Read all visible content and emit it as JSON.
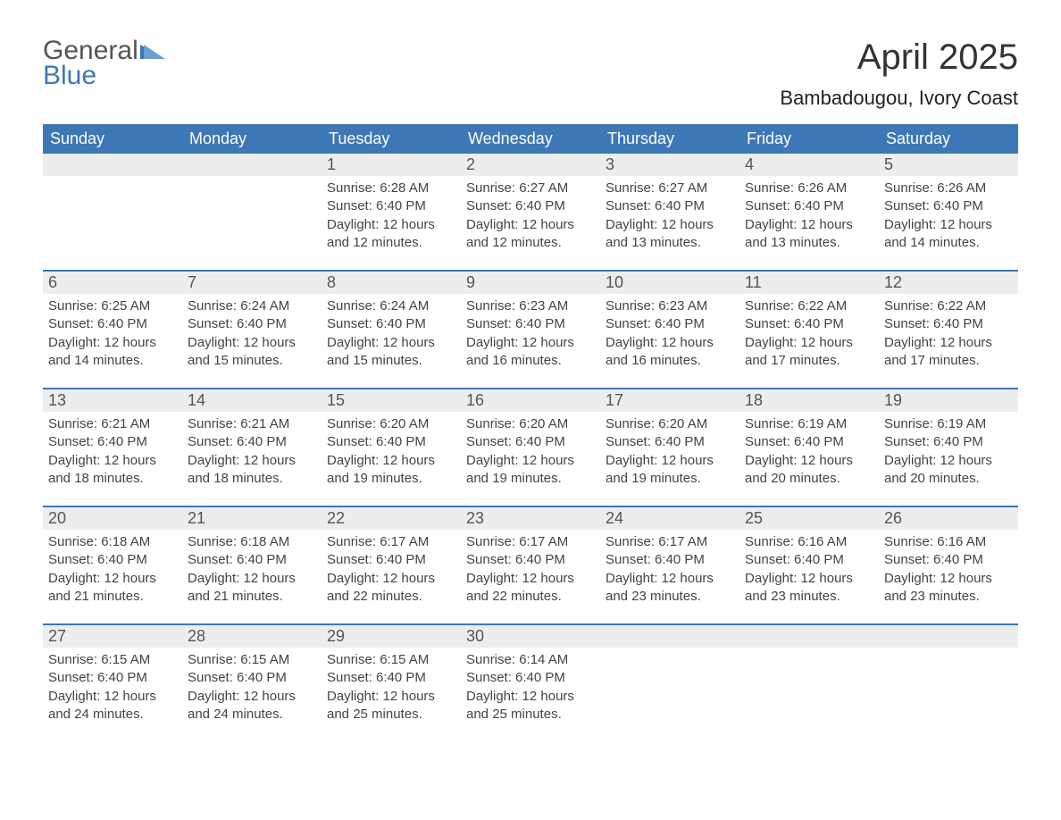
{
  "colors": {
    "brand_blue": "#3d77b6",
    "header_bg": "#3d77b6",
    "header_text": "#ffffff",
    "daynum_bg": "#eceded",
    "daynum_text": "#555555",
    "body_text": "#444444",
    "logo_gray": "#555555",
    "page_bg": "#ffffff"
  },
  "typography": {
    "month_title_fontsize": 40,
    "location_fontsize": 22,
    "weekday_fontsize": 18,
    "daynum_fontsize": 18,
    "daybody_fontsize": 15,
    "logo_fontsize": 30
  },
  "logo": {
    "word1": "General",
    "word2": "Blue"
  },
  "title": "April 2025",
  "location": "Bambadougou, Ivory Coast",
  "weekdays": [
    "Sunday",
    "Monday",
    "Tuesday",
    "Wednesday",
    "Thursday",
    "Friday",
    "Saturday"
  ],
  "labels": {
    "sunrise": "Sunrise:",
    "sunset": "Sunset:",
    "daylight": "Daylight:"
  },
  "layout": {
    "columns": 7,
    "rows": 5,
    "blank_leading_cells": 2
  },
  "weeks": [
    [
      null,
      null,
      {
        "n": "1",
        "sr": "6:28 AM",
        "ss": "6:40 PM",
        "dl": "12 hours and 12 minutes."
      },
      {
        "n": "2",
        "sr": "6:27 AM",
        "ss": "6:40 PM",
        "dl": "12 hours and 12 minutes."
      },
      {
        "n": "3",
        "sr": "6:27 AM",
        "ss": "6:40 PM",
        "dl": "12 hours and 13 minutes."
      },
      {
        "n": "4",
        "sr": "6:26 AM",
        "ss": "6:40 PM",
        "dl": "12 hours and 13 minutes."
      },
      {
        "n": "5",
        "sr": "6:26 AM",
        "ss": "6:40 PM",
        "dl": "12 hours and 14 minutes."
      }
    ],
    [
      {
        "n": "6",
        "sr": "6:25 AM",
        "ss": "6:40 PM",
        "dl": "12 hours and 14 minutes."
      },
      {
        "n": "7",
        "sr": "6:24 AM",
        "ss": "6:40 PM",
        "dl": "12 hours and 15 minutes."
      },
      {
        "n": "8",
        "sr": "6:24 AM",
        "ss": "6:40 PM",
        "dl": "12 hours and 15 minutes."
      },
      {
        "n": "9",
        "sr": "6:23 AM",
        "ss": "6:40 PM",
        "dl": "12 hours and 16 minutes."
      },
      {
        "n": "10",
        "sr": "6:23 AM",
        "ss": "6:40 PM",
        "dl": "12 hours and 16 minutes."
      },
      {
        "n": "11",
        "sr": "6:22 AM",
        "ss": "6:40 PM",
        "dl": "12 hours and 17 minutes."
      },
      {
        "n": "12",
        "sr": "6:22 AM",
        "ss": "6:40 PM",
        "dl": "12 hours and 17 minutes."
      }
    ],
    [
      {
        "n": "13",
        "sr": "6:21 AM",
        "ss": "6:40 PM",
        "dl": "12 hours and 18 minutes."
      },
      {
        "n": "14",
        "sr": "6:21 AM",
        "ss": "6:40 PM",
        "dl": "12 hours and 18 minutes."
      },
      {
        "n": "15",
        "sr": "6:20 AM",
        "ss": "6:40 PM",
        "dl": "12 hours and 19 minutes."
      },
      {
        "n": "16",
        "sr": "6:20 AM",
        "ss": "6:40 PM",
        "dl": "12 hours and 19 minutes."
      },
      {
        "n": "17",
        "sr": "6:20 AM",
        "ss": "6:40 PM",
        "dl": "12 hours and 19 minutes."
      },
      {
        "n": "18",
        "sr": "6:19 AM",
        "ss": "6:40 PM",
        "dl": "12 hours and 20 minutes."
      },
      {
        "n": "19",
        "sr": "6:19 AM",
        "ss": "6:40 PM",
        "dl": "12 hours and 20 minutes."
      }
    ],
    [
      {
        "n": "20",
        "sr": "6:18 AM",
        "ss": "6:40 PM",
        "dl": "12 hours and 21 minutes."
      },
      {
        "n": "21",
        "sr": "6:18 AM",
        "ss": "6:40 PM",
        "dl": "12 hours and 21 minutes."
      },
      {
        "n": "22",
        "sr": "6:17 AM",
        "ss": "6:40 PM",
        "dl": "12 hours and 22 minutes."
      },
      {
        "n": "23",
        "sr": "6:17 AM",
        "ss": "6:40 PM",
        "dl": "12 hours and 22 minutes."
      },
      {
        "n": "24",
        "sr": "6:17 AM",
        "ss": "6:40 PM",
        "dl": "12 hours and 23 minutes."
      },
      {
        "n": "25",
        "sr": "6:16 AM",
        "ss": "6:40 PM",
        "dl": "12 hours and 23 minutes."
      },
      {
        "n": "26",
        "sr": "6:16 AM",
        "ss": "6:40 PM",
        "dl": "12 hours and 23 minutes."
      }
    ],
    [
      {
        "n": "27",
        "sr": "6:15 AM",
        "ss": "6:40 PM",
        "dl": "12 hours and 24 minutes."
      },
      {
        "n": "28",
        "sr": "6:15 AM",
        "ss": "6:40 PM",
        "dl": "12 hours and 24 minutes."
      },
      {
        "n": "29",
        "sr": "6:15 AM",
        "ss": "6:40 PM",
        "dl": "12 hours and 25 minutes."
      },
      {
        "n": "30",
        "sr": "6:14 AM",
        "ss": "6:40 PM",
        "dl": "12 hours and 25 minutes."
      },
      null,
      null,
      null
    ]
  ]
}
